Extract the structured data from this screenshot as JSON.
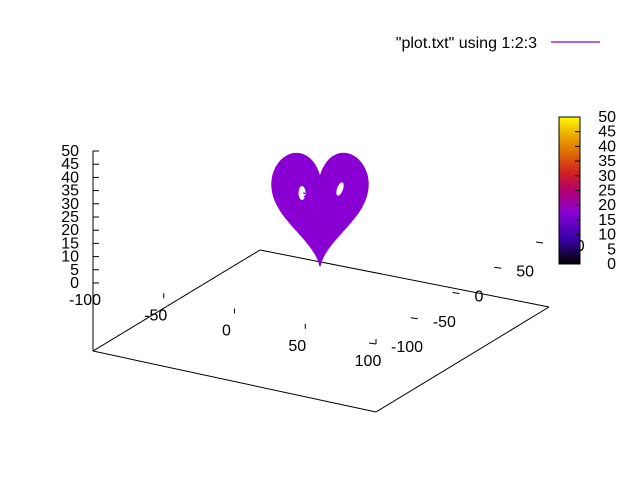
{
  "chart_data": {
    "type": "scatter",
    "subtype": "3d-splot-points",
    "title": "",
    "legend": {
      "placement": "top-right",
      "entries": [
        "\"plot.txt\" using 1:2:3"
      ]
    },
    "series": [
      {
        "name": "\"plot.txt\" using 1:2:3",
        "color": "#8a00d4",
        "color_by": "z",
        "shape": "heart-shaped point cloud (two lobes with two small holes)",
        "approx_extent": {
          "x": [
            -18,
            18
          ],
          "y": [
            -20,
            20
          ],
          "z": [
            0,
            36
          ]
        }
      }
    ],
    "axes": {
      "x": {
        "ticks": [
          "-100",
          "-50",
          "0",
          "50",
          "100"
        ],
        "range": [
          -100,
          100
        ]
      },
      "y": {
        "ticks": [
          "-100",
          "-50",
          "0",
          "50",
          "100"
        ],
        "range": [
          -100,
          100
        ]
      },
      "z": {
        "ticks": [
          "0",
          "5",
          "10",
          "15",
          "20",
          "25",
          "30",
          "35",
          "40",
          "45",
          "50"
        ],
        "range": [
          0,
          50
        ]
      }
    },
    "colorbar": {
      "ticks": [
        "0",
        "5",
        "10",
        "15",
        "20",
        "25",
        "30",
        "35",
        "40",
        "45",
        "50"
      ],
      "range": [
        0,
        50
      ],
      "palette": [
        "#000000",
        "#3a00a8",
        "#8a00d4",
        "#c01060",
        "#e05000",
        "#f0a000",
        "#ffff00"
      ]
    },
    "grid": false
  }
}
